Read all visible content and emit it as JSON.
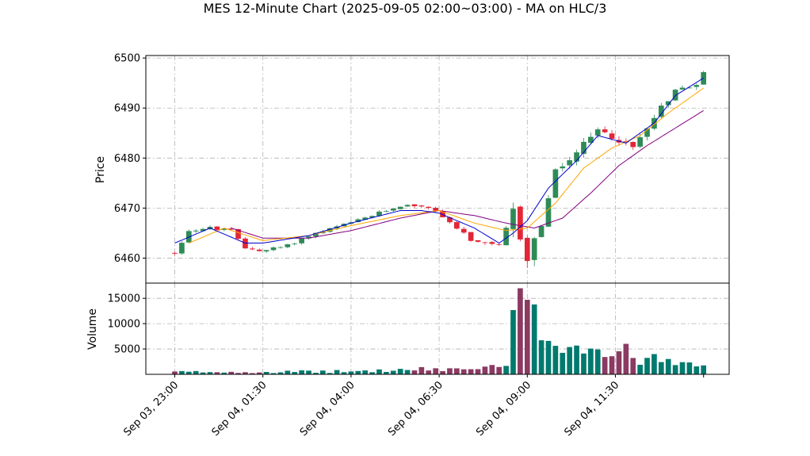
{
  "title": "MES 12-Minute Chart (2025-09-05 02:00~03:00) - MA on HLC/3",
  "colors": {
    "up": "#2e8b57",
    "down": "#e32636",
    "vol_up": "#007a6e",
    "vol_down": "#8b3a62",
    "ma_fast": "#0000cd",
    "ma_mid": "#ffa500",
    "ma_slow": "#800080"
  },
  "chart_data": [
    {
      "type": "candlestick",
      "ylabel": "Price",
      "ylim": [
        6455,
        6500.5
      ],
      "y_ticks": [
        6460,
        6470,
        6480,
        6490,
        6500
      ],
      "grid": true,
      "bar_interval_minutes": 12,
      "x_tick_labels": [
        "Sep 03, 23:00",
        "Sep 04, 01:30",
        "Sep 04, 04:00",
        "Sep 04, 06:30",
        "Sep 04, 09:00",
        "Sep 04, 11:30"
      ],
      "price_path": [
        [
          "Sep 03, 23:00",
          6461
        ],
        [
          "Sep 03, 23:24",
          6465.5
        ],
        [
          "Sep 04, 00:00",
          6466
        ],
        [
          "Sep 04, 00:36",
          6465.5
        ],
        [
          "Sep 04, 01:00",
          6462
        ],
        [
          "Sep 04, 01:30",
          6461.5
        ],
        [
          "Sep 04, 02:12",
          6462.5
        ],
        [
          "Sep 04, 02:48",
          6464.5
        ],
        [
          "Sep 04, 03:30",
          6466
        ],
        [
          "Sep 04, 04:12",
          6467.5
        ],
        [
          "Sep 04, 04:48",
          6469
        ],
        [
          "Sep 04, 05:24",
          6470.5
        ],
        [
          "Sep 04, 06:00",
          6470.5
        ],
        [
          "Sep 04, 06:30",
          6469
        ],
        [
          "Sep 04, 07:00",
          6466
        ],
        [
          "Sep 04, 07:30",
          6463
        ],
        [
          "Sep 04, 08:12",
          6462.5
        ],
        [
          "Sep 04, 08:36",
          6469
        ],
        [
          "Sep 04, 09:00",
          6460
        ],
        [
          "Sep 04, 09:24",
          6467
        ],
        [
          "Sep 04, 09:48",
          6477
        ],
        [
          "Sep 04, 10:24",
          6481
        ],
        [
          "Sep 04, 11:00",
          6485.5
        ],
        [
          "Sep 04, 11:30",
          6484
        ],
        [
          "Sep 04, 12:00",
          6482
        ],
        [
          "Sep 04, 12:36",
          6488.5
        ],
        [
          "Sep 04, 13:12",
          6493.5
        ],
        [
          "Sep 04, 13:48",
          6495
        ],
        [
          "Sep 04, 14:00",
          6497
        ]
      ],
      "ma_fast": [
        [
          "Sep 03, 23:00",
          6463
        ],
        [
          "Sep 04, 00:00",
          6466
        ],
        [
          "Sep 04, 01:00",
          6463
        ],
        [
          "Sep 04, 01:30",
          6463
        ],
        [
          "Sep 04, 02:48",
          6464.5
        ],
        [
          "Sep 04, 04:00",
          6467
        ],
        [
          "Sep 04, 05:24",
          6469.5
        ],
        [
          "Sep 04, 06:00",
          6469.5
        ],
        [
          "Sep 04, 06:30",
          6469
        ],
        [
          "Sep 04, 07:30",
          6466
        ],
        [
          "Sep 04, 08:12",
          6463
        ],
        [
          "Sep 04, 08:36",
          6465
        ],
        [
          "Sep 04, 09:00",
          6467.5
        ],
        [
          "Sep 04, 09:36",
          6474
        ],
        [
          "Sep 04, 10:24",
          6479.5
        ],
        [
          "Sep 04, 11:00",
          6484.5
        ],
        [
          "Sep 04, 11:48",
          6483
        ],
        [
          "Sep 04, 12:36",
          6487
        ],
        [
          "Sep 04, 13:12",
          6492.5
        ],
        [
          "Sep 04, 14:00",
          6496
        ]
      ],
      "ma_mid": [
        [
          "Sep 03, 23:24",
          6463
        ],
        [
          "Sep 04, 00:24",
          6466
        ],
        [
          "Sep 04, 01:30",
          6463.5
        ],
        [
          "Sep 04, 02:48",
          6464.5
        ],
        [
          "Sep 04, 04:00",
          6466.5
        ],
        [
          "Sep 04, 05:24",
          6468.5
        ],
        [
          "Sep 04, 06:30",
          6469.5
        ],
        [
          "Sep 04, 07:30",
          6467
        ],
        [
          "Sep 04, 08:24",
          6465.5
        ],
        [
          "Sep 04, 09:00",
          6466
        ],
        [
          "Sep 04, 09:48",
          6471
        ],
        [
          "Sep 04, 10:36",
          6478
        ],
        [
          "Sep 04, 11:24",
          6482
        ],
        [
          "Sep 04, 12:12",
          6484.5
        ],
        [
          "Sep 04, 13:00",
          6489
        ],
        [
          "Sep 04, 14:00",
          6494
        ]
      ],
      "ma_slow": [
        [
          "Sep 04, 00:36",
          6466
        ],
        [
          "Sep 04, 01:30",
          6464
        ],
        [
          "Sep 04, 02:48",
          6464
        ],
        [
          "Sep 04, 04:00",
          6465.5
        ],
        [
          "Sep 04, 05:24",
          6468
        ],
        [
          "Sep 04, 06:30",
          6469.5
        ],
        [
          "Sep 04, 07:30",
          6468.5
        ],
        [
          "Sep 04, 08:24",
          6467
        ],
        [
          "Sep 04, 09:12",
          6466
        ],
        [
          "Sep 04, 10:00",
          6468
        ],
        [
          "Sep 04, 10:48",
          6473
        ],
        [
          "Sep 04, 11:36",
          6478.5
        ],
        [
          "Sep 04, 12:24",
          6482.5
        ],
        [
          "Sep 04, 13:12",
          6486
        ],
        [
          "Sep 04, 14:00",
          6489.5
        ]
      ]
    },
    {
      "type": "bar",
      "ylabel": "Volume",
      "ylim": [
        0,
        18000
      ],
      "y_ticks": [
        5000,
        10000,
        15000
      ],
      "grid": true,
      "volume_profile": [
        [
          "Sep 03, 23:00",
          500
        ],
        [
          "Sep 04, 01:30",
          500
        ],
        [
          "Sep 04, 04:00",
          600
        ],
        [
          "Sep 04, 06:00",
          1000
        ],
        [
          "Sep 04, 07:30",
          1200
        ],
        [
          "Sep 04, 08:24",
          1500
        ],
        [
          "Sep 04, 08:36",
          13000
        ],
        [
          "Sep 04, 09:00",
          12000
        ],
        [
          "Sep 04, 09:36",
          8500
        ],
        [
          "Sep 04, 10:24",
          6500
        ],
        [
          "Sep 04, 11:00",
          5000
        ],
        [
          "Sep 04, 12:00",
          4000
        ],
        [
          "Sep 04, 13:00",
          3500
        ],
        [
          "Sep 04, 14:00",
          3000
        ]
      ]
    }
  ]
}
